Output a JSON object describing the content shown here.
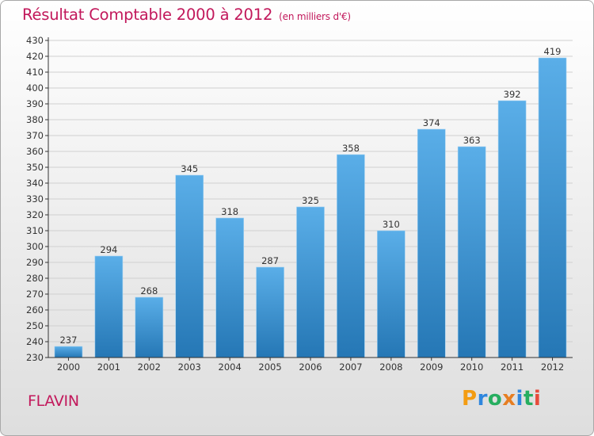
{
  "title": "Résultat Comptable 2000 à 2012",
  "subtitle": "(en milliers d'€)",
  "place": "FLAVIN",
  "logo": {
    "text": "Proxiti",
    "letters": [
      {
        "char": "P",
        "color": "#f39c12"
      },
      {
        "char": "r",
        "color": "#2e86de"
      },
      {
        "char": "o",
        "color": "#27ae60"
      },
      {
        "char": "x",
        "color": "#e67e22"
      },
      {
        "char": "i",
        "color": "#2e86de"
      },
      {
        "char": "t",
        "color": "#27ae60"
      },
      {
        "char": "i",
        "color": "#e74c3c"
      }
    ]
  },
  "colors": {
    "bar_top": "#5aaee8",
    "bar_bottom": "#2577b5",
    "axis": "#333333",
    "grid": "#d0d0d0",
    "text": "#333333"
  },
  "chart_data": {
    "type": "bar",
    "title": "Résultat Comptable 2000 à 2012",
    "subtitle": "(en milliers d'€)",
    "xlabel": "",
    "ylabel": "",
    "categories": [
      "2000",
      "2001",
      "2002",
      "2003",
      "2004",
      "2005",
      "2006",
      "2007",
      "2008",
      "2009",
      "2010",
      "2011",
      "2012"
    ],
    "values": [
      237,
      294,
      268,
      345,
      318,
      287,
      325,
      358,
      310,
      374,
      363,
      392,
      419
    ],
    "ylim": [
      230,
      430
    ],
    "ytick_step": 10,
    "yticks": [
      "230",
      "240",
      "250",
      "260",
      "270",
      "280",
      "290",
      "300",
      "310",
      "320",
      "330",
      "340",
      "350",
      "360",
      "370",
      "380",
      "390",
      "400",
      "410",
      "420",
      "430"
    ],
    "grid": true,
    "data_labels": true,
    "legend": "none"
  }
}
